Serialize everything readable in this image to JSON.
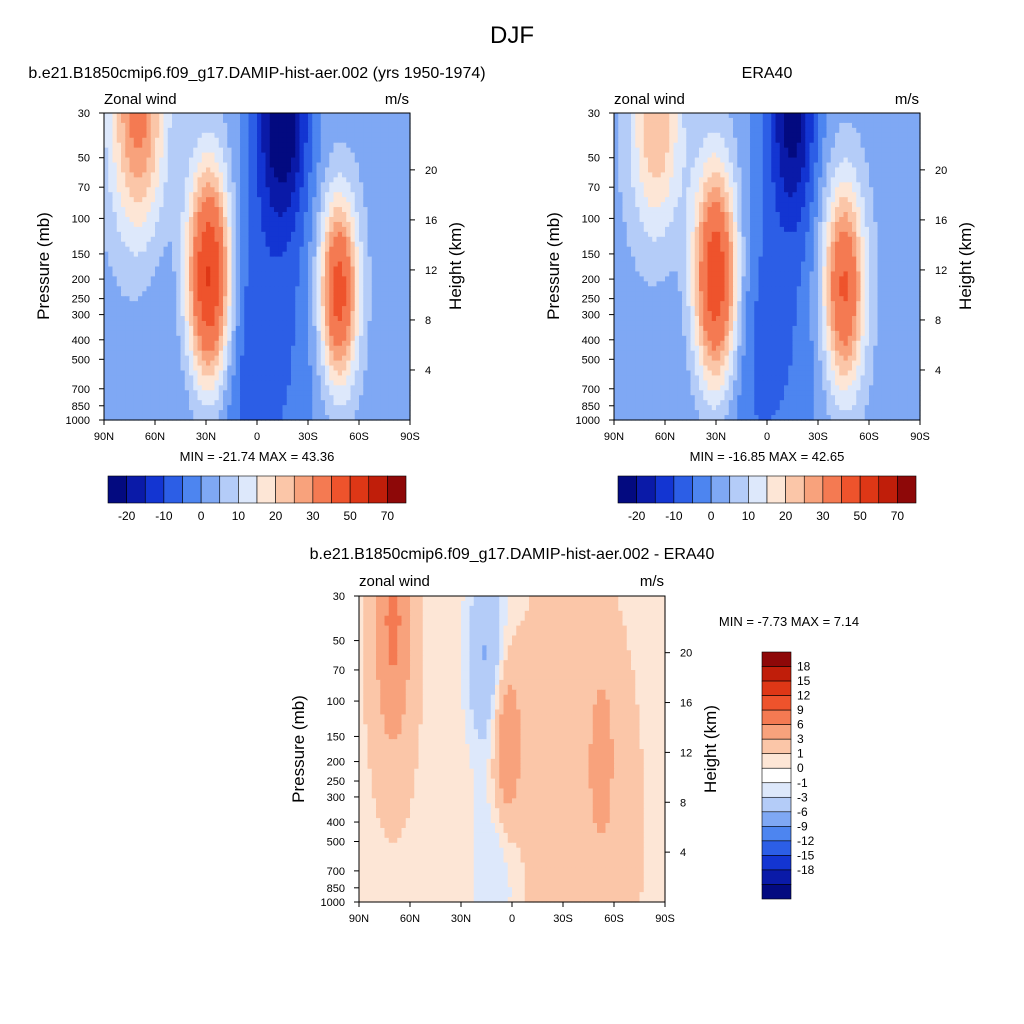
{
  "figure_title": "DJF",
  "colors": {
    "panel12_levels": [
      "#030a80",
      "#0a1aa8",
      "#1335d2",
      "#2c5ee6",
      "#4d85f0",
      "#7fa8f4",
      "#b4ccf8",
      "#dde8fb",
      "#fde6d6",
      "#fbc6a8",
      "#f8a27c",
      "#f47a52",
      "#ee532c",
      "#de3716",
      "#c01e0a",
      "#8e0808"
    ],
    "diff_levels": [
      "#030a80",
      "#0a1aa8",
      "#1335d2",
      "#2c5ee6",
      "#4d85f0",
      "#7fa8f4",
      "#b4ccf8",
      "#dde8fb",
      "#ffffff",
      "#fde6d6",
      "#fbc6a8",
      "#f8a27c",
      "#f47a52",
      "#ee532c",
      "#de3716",
      "#c01e0a",
      "#8e0808"
    ]
  },
  "chart_data": [
    {
      "type": "heatmap",
      "title": "b.e21.B1850cmip6.f09_g17.DAMIP-hist-aer.002 (yrs 1950-1974)",
      "left_label": "Zonal wind",
      "right_label": "m/s",
      "ylabel": "Pressure (mb)",
      "y2label": "Height (km)",
      "x_ticks": [
        "90N",
        "60N",
        "30N",
        "0",
        "30S",
        "60S",
        "90S"
      ],
      "x_tick_values": [
        90,
        60,
        30,
        0,
        -30,
        -60,
        -90
      ],
      "y_ticks": [
        "30",
        "50",
        "70",
        "100",
        "150",
        "200",
        "250",
        "300",
        "400",
        "500",
        "700",
        "850",
        "1000"
      ],
      "y_tick_values": [
        30,
        50,
        70,
        100,
        150,
        200,
        250,
        300,
        400,
        500,
        700,
        850,
        1000
      ],
      "y2_ticks": [
        "20",
        "16",
        "12",
        "8",
        "4"
      ],
      "y2_tick_values": [
        20,
        16,
        12,
        8,
        4
      ],
      "stats": "MIN = -21.74  MAX =  43.36",
      "colorbar_labels": [
        "-20",
        "-10",
        "0",
        "10",
        "20",
        "30",
        "50",
        "70"
      ],
      "features": [
        {
          "lat": 28,
          "p": 200,
          "amp": 55,
          "wlat": 13,
          "wlogp": 0.55
        },
        {
          "lat": 70,
          "p": 30,
          "amp": 30,
          "wlat": 16,
          "wlogp": 0.6
        },
        {
          "lat": -48,
          "p": 230,
          "amp": 43,
          "wlat": 11,
          "wlogp": 0.45
        },
        {
          "lat": -15,
          "p": 30,
          "amp": -28,
          "wlat": 15,
          "wlogp": 0.55
        },
        {
          "lat": 5,
          "p": 400,
          "amp": -12,
          "wlat": 40,
          "wlogp": 0.9
        }
      ],
      "base_value": 3
    },
    {
      "type": "heatmap",
      "title": "ERA40",
      "left_label": "zonal wind",
      "right_label": "m/s",
      "ylabel": "Pressure (mb)",
      "y2label": "Height (km)",
      "x_ticks": [
        "90N",
        "60N",
        "30N",
        "0",
        "30S",
        "60S",
        "90S"
      ],
      "x_tick_values": [
        90,
        60,
        30,
        0,
        -30,
        -60,
        -90
      ],
      "y_ticks": [
        "30",
        "50",
        "70",
        "100",
        "150",
        "200",
        "250",
        "300",
        "400",
        "500",
        "700",
        "850",
        "1000"
      ],
      "y_tick_values": [
        30,
        50,
        70,
        100,
        150,
        200,
        250,
        300,
        400,
        500,
        700,
        850,
        1000
      ],
      "y2_ticks": [
        "20",
        "16",
        "12",
        "8",
        "4"
      ],
      "y2_tick_values": [
        20,
        16,
        12,
        8,
        4
      ],
      "stats": "MIN = -16.85  MAX =  42.65",
      "colorbar_labels": [
        "-20",
        "-10",
        "0",
        "10",
        "20",
        "30",
        "50",
        "70"
      ],
      "features": [
        {
          "lat": 30,
          "p": 200,
          "amp": 50,
          "wlat": 13,
          "wlogp": 0.55
        },
        {
          "lat": 65,
          "p": 35,
          "amp": 22,
          "wlat": 15,
          "wlogp": 0.55
        },
        {
          "lat": -45,
          "p": 220,
          "amp": 40,
          "wlat": 12,
          "wlogp": 0.5
        },
        {
          "lat": -15,
          "p": 30,
          "amp": -24,
          "wlat": 14,
          "wlogp": 0.55
        },
        {
          "lat": 5,
          "p": 400,
          "amp": -10,
          "wlat": 40,
          "wlogp": 0.9
        }
      ],
      "base_value": 3
    },
    {
      "type": "heatmap",
      "title": "b.e21.B1850cmip6.f09_g17.DAMIP-hist-aer.002 - ERA40",
      "left_label": "zonal wind",
      "right_label": "m/s",
      "ylabel": "Pressure (mb)",
      "y2label": "Height (km)",
      "x_ticks": [
        "90N",
        "60N",
        "30N",
        "0",
        "30S",
        "60S",
        "90S"
      ],
      "x_tick_values": [
        90,
        60,
        30,
        0,
        -30,
        -60,
        -90
      ],
      "y_ticks": [
        "30",
        "50",
        "70",
        "100",
        "150",
        "200",
        "250",
        "300",
        "400",
        "500",
        "700",
        "850",
        "1000"
      ],
      "y_tick_values": [
        30,
        50,
        70,
        100,
        150,
        200,
        250,
        300,
        400,
        500,
        700,
        850,
        1000
      ],
      "y2_ticks": [
        "20",
        "16",
        "12",
        "8",
        "4"
      ],
      "y2_tick_values": [
        20,
        16,
        12,
        8,
        4
      ],
      "stats": "MIN =  -7.73  MAX =   7.14",
      "colorbar_labels": [
        "18",
        "15",
        "12",
        "9",
        "6",
        "3",
        "1",
        "0",
        "-1",
        "-3",
        "-6",
        "-9",
        "-12",
        "-15",
        "-18"
      ],
      "features": [
        {
          "lat": 70,
          "p": 40,
          "amp": 6,
          "wlat": 10,
          "wlogp": 0.6
        },
        {
          "lat": 3,
          "p": 160,
          "amp": 5,
          "wlat": 8,
          "wlogp": 0.4
        },
        {
          "lat": -53,
          "p": 190,
          "amp": 4,
          "wlat": 6,
          "wlogp": 0.35
        },
        {
          "lat": 15,
          "p": 60,
          "amp": -4,
          "wlat": 12,
          "wlogp": 0.5
        },
        {
          "lat": 10,
          "p": 700,
          "amp": -2,
          "wlat": 14,
          "wlogp": 0.4
        },
        {
          "lat": -35,
          "p": 400,
          "amp": 1.5,
          "wlat": 30,
          "wlogp": 1.0
        }
      ],
      "base_value": 0.8
    }
  ]
}
